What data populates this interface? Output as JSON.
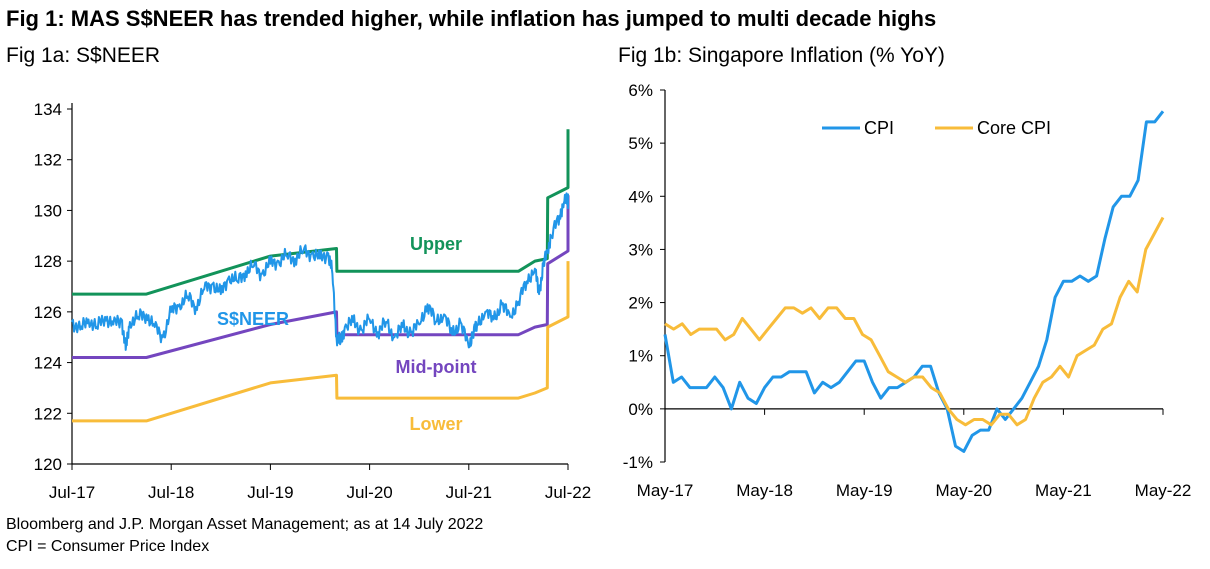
{
  "title": "Fig 1: MAS S$NEER has trended higher, while inflation has jumped to multi decade highs",
  "footer": {
    "source": "Bloomberg and J.P. Morgan Asset Management; as at 14 July 2022",
    "note": "CPI = Consumer Price Index"
  },
  "colors": {
    "sneer": "#2196e8",
    "upper": "#12935a",
    "mid": "#7446bf",
    "lower": "#f8bc3a",
    "cpi": "#2196e8",
    "core": "#f8bc3a"
  },
  "chart_data": [
    {
      "type": "line",
      "title": "Fig 1a: S$NEER",
      "x_tick_labels": [
        "Jul-17",
        "Jul-18",
        "Jul-19",
        "Jul-20",
        "Jul-21",
        "Jul-22"
      ],
      "ylim": [
        120,
        134
      ],
      "y_ticks": [
        120,
        122,
        124,
        126,
        128,
        130,
        132,
        134
      ],
      "x_unit": "months since Jul-17",
      "annotations": {
        "upper": "Upper",
        "sneer": "S$NEER",
        "mid": "Mid-point",
        "lower": "Lower"
      },
      "series": [
        {
          "name": "Upper",
          "x": [
            0,
            9,
            24,
            32,
            32.05,
            54,
            56,
            57.5,
            57.55,
            60,
            60.05
          ],
          "y": [
            126.7,
            126.7,
            128.2,
            128.5,
            127.6,
            127.6,
            128.0,
            128.1,
            130.5,
            130.9,
            133.2
          ]
        },
        {
          "name": "Mid-point",
          "x": [
            0,
            9,
            24,
            32,
            32.05,
            54,
            56,
            57.5,
            57.55,
            60,
            60.05
          ],
          "y": [
            124.2,
            124.2,
            125.5,
            126.0,
            125.1,
            125.1,
            125.4,
            125.5,
            127.9,
            128.4,
            130.6
          ]
        },
        {
          "name": "Lower",
          "x": [
            0,
            9,
            24,
            32,
            32.05,
            54,
            56,
            57.5,
            57.55,
            60,
            60.05
          ],
          "y": [
            121.7,
            121.7,
            123.2,
            123.5,
            122.6,
            122.6,
            122.8,
            123.0,
            125.4,
            125.8,
            128.0
          ]
        },
        {
          "name": "S$NEER",
          "x": [
            0,
            1,
            2,
            3,
            4,
            5,
            6,
            6.5,
            7,
            8,
            9,
            10,
            11,
            12,
            13,
            14,
            15,
            16,
            17,
            18,
            19,
            20,
            21,
            22,
            23,
            24,
            25,
            26,
            27,
            28,
            29,
            30,
            31,
            31.5,
            32,
            32.5,
            33,
            34,
            35,
            36,
            37,
            38,
            39,
            40,
            41,
            42,
            43,
            44,
            45,
            46,
            47,
            48,
            48.5,
            49,
            50,
            51,
            52,
            53,
            54,
            55,
            56,
            56.5,
            57,
            57.5,
            58,
            59,
            59.5,
            60,
            60.5
          ],
          "y": [
            125.6,
            125.3,
            125.7,
            125.4,
            125.8,
            125.5,
            125.7,
            124.5,
            125.6,
            125.8,
            125.9,
            125.4,
            125.0,
            126.0,
            126.3,
            126.6,
            126.2,
            126.9,
            127.1,
            126.7,
            127.4,
            127.2,
            127.6,
            127.8,
            127.5,
            127.9,
            128.0,
            128.2,
            128.1,
            128.4,
            128.3,
            128.1,
            128.3,
            127.5,
            125.0,
            124.8,
            125.4,
            125.6,
            125.3,
            125.7,
            125.2,
            125.6,
            125.0,
            125.4,
            125.2,
            125.5,
            126.3,
            125.6,
            125.9,
            125.1,
            125.6,
            124.6,
            125.2,
            125.5,
            126.0,
            125.7,
            126.3,
            125.8,
            126.4,
            127.2,
            127.7,
            126.7,
            127.8,
            128.4,
            129.0,
            129.8,
            130.3,
            130.5,
            130.2
          ]
        }
      ]
    },
    {
      "type": "line",
      "title": "Fig 1b: Singapore Inflation (% YoY)",
      "x_tick_labels": [
        "May-17",
        "May-18",
        "May-19",
        "May-20",
        "May-21",
        "May-22"
      ],
      "ylim": [
        -1,
        6
      ],
      "y_ticks": [
        -1,
        0,
        1,
        2,
        3,
        4,
        5,
        6
      ],
      "y_tick_labels": [
        "-1%",
        "0%",
        "1%",
        "2%",
        "3%",
        "4%",
        "5%",
        "6%"
      ],
      "x_unit": "months since May-17",
      "legend": {
        "position": "top-center"
      },
      "series": [
        {
          "name": "CPI",
          "y": [
            1.4,
            0.5,
            0.6,
            0.4,
            0.4,
            0.4,
            0.6,
            0.4,
            0.0,
            0.5,
            0.2,
            0.1,
            0.4,
            0.6,
            0.6,
            0.7,
            0.7,
            0.7,
            0.3,
            0.5,
            0.4,
            0.5,
            0.7,
            0.9,
            0.9,
            0.5,
            0.2,
            0.4,
            0.4,
            0.5,
            0.6,
            0.8,
            0.8,
            0.3,
            0.0,
            -0.7,
            -0.8,
            -0.5,
            -0.4,
            -0.4,
            0.0,
            -0.2,
            0.0,
            0.2,
            0.5,
            0.8,
            1.3,
            2.1,
            2.4,
            2.4,
            2.5,
            2.4,
            2.5,
            3.2,
            3.8,
            4.0,
            4.0,
            4.3,
            5.4,
            5.4,
            5.6
          ]
        },
        {
          "name": "Core CPI",
          "y": [
            1.6,
            1.5,
            1.6,
            1.4,
            1.5,
            1.5,
            1.5,
            1.3,
            1.4,
            1.7,
            1.5,
            1.3,
            1.5,
            1.7,
            1.9,
            1.9,
            1.8,
            1.9,
            1.7,
            1.9,
            1.9,
            1.7,
            1.7,
            1.4,
            1.3,
            1.0,
            0.7,
            0.6,
            0.5,
            0.6,
            0.6,
            0.4,
            0.3,
            0.0,
            -0.2,
            -0.3,
            -0.2,
            -0.2,
            -0.3,
            -0.1,
            -0.1,
            -0.3,
            -0.2,
            0.2,
            0.5,
            0.6,
            0.8,
            0.6,
            1.0,
            1.1,
            1.2,
            1.5,
            1.6,
            2.1,
            2.4,
            2.2,
            3.0,
            3.3,
            3.6
          ]
        }
      ]
    }
  ]
}
